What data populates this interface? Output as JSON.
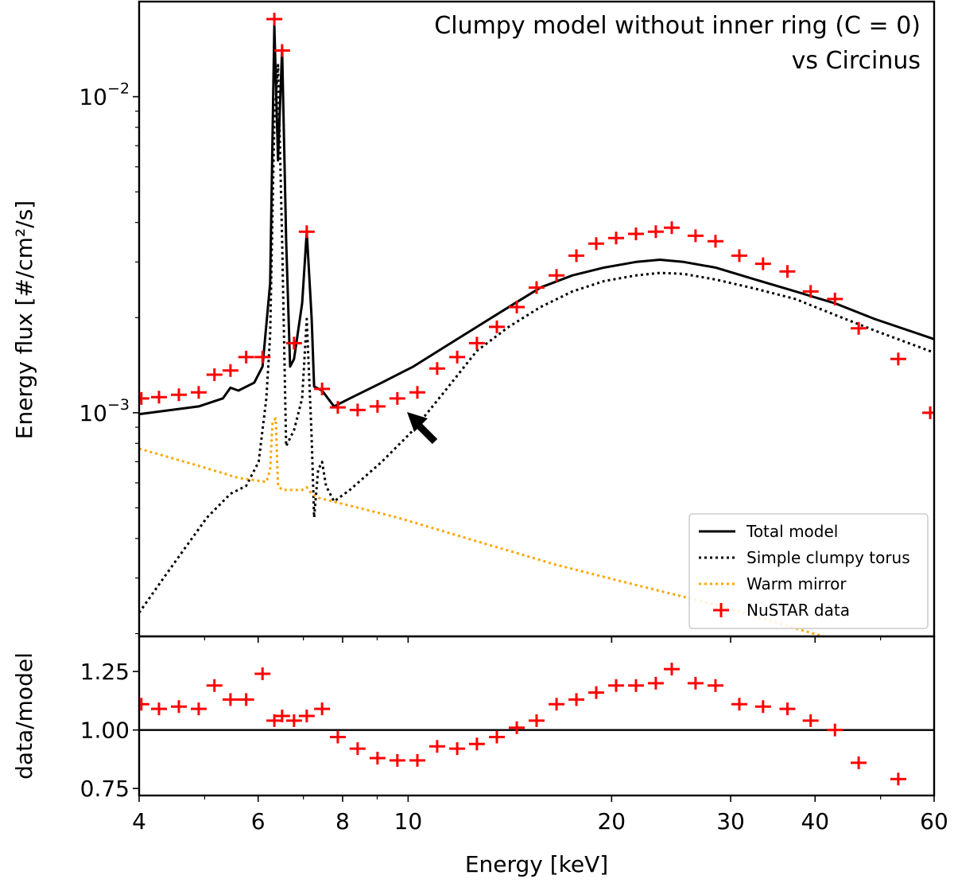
{
  "chart_data": [
    {
      "type": "line",
      "title": [
        "Clumpy model without inner ring (C = 0)",
        "vs Circinus"
      ],
      "y_label": "Energy flux [#/cm²/s]",
      "xlog": true,
      "ylog": true,
      "xlim": [
        4,
        60
      ],
      "ylim": [
        0.000196,
        0.02
      ],
      "xticks": [
        4,
        6,
        8,
        10,
        20,
        30,
        40,
        60
      ],
      "xminor": [
        5,
        7,
        9,
        50
      ],
      "yticks": [
        {
          "value": 0.01,
          "label": "10",
          "exponent": "−2"
        },
        {
          "value": 0.001,
          "label": "10",
          "exponent": "−3"
        }
      ],
      "yminor": [
        0.0002,
        0.0003,
        0.0004,
        0.0005,
        0.0006,
        0.0007,
        0.0008,
        0.0009,
        0.002,
        0.003,
        0.004,
        0.005,
        0.006,
        0.007,
        0.008,
        0.009
      ],
      "legend": "lower right",
      "series": [
        {
          "name": "Total model",
          "style": "solid",
          "color": "#000000",
          "x": [
            4.0,
            4.9,
            5.32,
            5.46,
            5.61,
            5.92,
            6.09,
            6.25,
            6.34,
            6.42,
            6.51,
            6.6,
            6.69,
            6.78,
            6.97,
            7.08,
            7.2,
            7.26,
            7.46,
            7.77,
            8.2,
            9.14,
            10.18,
            11.35,
            12.64,
            14.09,
            15.7,
            17.5,
            19.5,
            21.73,
            23.57,
            25.57,
            28.49,
            32.6,
            37.4,
            42.8,
            49.0,
            60
          ],
          "values": [
            0.00099,
            0.001047,
            0.00111,
            0.0012,
            0.001175,
            0.001245,
            0.0014,
            0.00257,
            0.0168,
            0.00629,
            0.0142,
            0.00353,
            0.0014,
            0.00148,
            0.00222,
            0.00374,
            0.00198,
            0.00121,
            0.001175,
            0.001047,
            0.00111,
            0.001245,
            0.0014,
            0.00162,
            0.00187,
            0.00216,
            0.00249,
            0.00272,
            0.00288,
            0.003,
            0.00305,
            0.003,
            0.00288,
            0.00264,
            0.00242,
            0.00222,
            0.00198,
            0.00171
          ]
        },
        {
          "name": "Simple clumpy torus",
          "style": "dotted",
          "color": "#000000",
          "x": [
            4.0,
            4.4,
            5.04,
            5.46,
            5.76,
            6.01,
            6.17,
            6.25,
            6.34,
            6.42,
            6.51,
            6.6,
            6.78,
            6.97,
            7.08,
            7.2,
            7.26,
            7.36,
            7.46,
            7.56,
            7.77,
            8.2,
            9.14,
            10.18,
            11.35,
            12.64,
            14.09,
            15.7,
            17.5,
            19.5,
            21.73,
            23.57,
            25.57,
            28.49,
            32.6,
            37.4,
            42.8,
            49.0,
            60
          ],
          "values": [
            0.000233,
            0.000311,
            0.000466,
            0.000554,
            0.000587,
            0.000699,
            0.00111,
            0.00176,
            0.00841,
            0.0126,
            0.00353,
            0.000784,
            0.000881,
            0.00111,
            0.00198,
            0.000831,
            0.000466,
            0.000659,
            0.000699,
            0.000587,
            0.000524,
            0.00057,
            0.000699,
            0.000881,
            0.001175,
            0.00157,
            0.00187,
            0.00216,
            0.00242,
            0.00261,
            0.00272,
            0.00277,
            0.00275,
            0.00264,
            0.00247,
            0.00229,
            0.00204,
            0.00182,
            0.00155
          ]
        },
        {
          "name": "Warm mirror",
          "style": "dotted",
          "color": "#ffa500",
          "x": [
            4.0,
            4.9,
            5.61,
            6.17,
            6.25,
            6.3,
            6.37,
            6.42,
            6.51,
            6.97,
            7.08,
            7.2,
            7.36,
            9.64,
            12.64,
            16.58,
            21.73,
            28.49,
            37.4,
            41.1
          ],
          "values": [
            0.00077,
            0.000679,
            0.000622,
            0.000604,
            0.000659,
            0.000933,
            0.00096,
            0.000587,
            0.00057,
            0.00057,
            0.000581,
            0.000554,
            0.000538,
            0.000466,
            0.000392,
            0.00033,
            0.000285,
            0.000247,
            0.000208,
            0.000196
          ]
        },
        {
          "name": "NuSTAR data",
          "style": "markers",
          "color": "#ff0000",
          "x": [
            4.03,
            4.28,
            4.58,
            4.9,
            5.17,
            5.46,
            5.76,
            6.09,
            6.34,
            6.51,
            6.78,
            7.08,
            7.46,
            7.87,
            8.42,
            9.01,
            9.64,
            10.32,
            11.04,
            11.82,
            12.64,
            13.53,
            14.48,
            15.49,
            16.58,
            17.74,
            18.98,
            20.31,
            21.73,
            23.25,
            24.55,
            26.62,
            28.49,
            30.9,
            33.5,
            36.4,
            39.4,
            42.8,
            46.4,
            53.1,
            59.2
          ],
          "values": [
            0.00111,
            0.00112,
            0.00114,
            0.00116,
            0.00132,
            0.00136,
            0.0015,
            0.0015,
            0.0176,
            0.014,
            0.00166,
            0.00374,
            0.00119,
            0.00104,
            0.00102,
            0.001047,
            0.00111,
            0.00116,
            0.00138,
            0.0015,
            0.00166,
            0.00187,
            0.00216,
            0.00249,
            0.00272,
            0.00314,
            0.00343,
            0.00357,
            0.00368,
            0.00374,
            0.00385,
            0.00363,
            0.00349,
            0.00314,
            0.00296,
            0.0028,
            0.00242,
            0.00229,
            0.00185,
            0.00148,
            0.001
          ]
        }
      ]
    },
    {
      "type": "scatter",
      "x_label": "Energy [keV]",
      "y_label": "data/model",
      "xlog": true,
      "ylog": false,
      "xlim": [
        4,
        60
      ],
      "ylim": [
        0.72,
        1.4
      ],
      "xticks": [
        4,
        6,
        8,
        10,
        20,
        30,
        40,
        60
      ],
      "xminor": [
        5,
        7,
        9,
        50
      ],
      "yticks": [
        {
          "value": 0.75,
          "label": "0.75"
        },
        {
          "value": 1,
          "label": "1.00"
        },
        1.25
      ],
      "hline": 1,
      "color": "#ff0000",
      "x": [
        4.03,
        4.28,
        4.58,
        4.9,
        5.17,
        5.46,
        5.76,
        6.09,
        6.34,
        6.51,
        6.78,
        7.08,
        7.46,
        7.87,
        8.42,
        9.01,
        9.64,
        10.32,
        11.04,
        11.82,
        12.64,
        13.53,
        14.48,
        15.49,
        16.58,
        17.74,
        18.98,
        20.31,
        21.73,
        23.25,
        24.55,
        26.62,
        28.49,
        30.9,
        33.5,
        36.4,
        39.4,
        42.8,
        46.4,
        53.1,
        59.2
      ],
      "values": [
        1.11,
        1.09,
        1.1,
        1.09,
        1.19,
        1.13,
        1.13,
        1.24,
        1.04,
        1.06,
        1.04,
        1.06,
        1.09,
        0.97,
        0.92,
        0.88,
        0.87,
        0.87,
        0.93,
        0.92,
        0.94,
        0.97,
        1.01,
        1.04,
        1.11,
        1.13,
        1.16,
        1.19,
        1.19,
        1.2,
        1.26,
        1.2,
        1.19,
        1.11,
        1.1,
        1.09,
        1.04,
        1.0,
        0.86,
        0.79,
        null
      ]
    }
  ]
}
